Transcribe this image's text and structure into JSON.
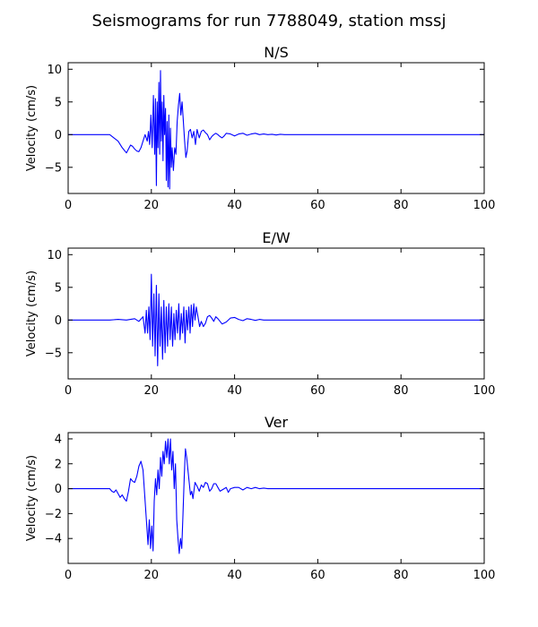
{
  "figure": {
    "title": "Seismograms for run 7788049, station mssj"
  },
  "chart_data": [
    {
      "type": "line",
      "title": "N/S",
      "xlabel": "",
      "ylabel": "Velocity (cm/s)",
      "xlim": [
        0,
        100
      ],
      "ylim": [
        -9,
        11
      ],
      "xticks": [
        0,
        20,
        40,
        60,
        80,
        100
      ],
      "yticks": [
        -5,
        0,
        5,
        10
      ],
      "grid": false,
      "series": [
        {
          "color": "#0000ff",
          "x": [
            0,
            10,
            11,
            12,
            13,
            14,
            14.5,
            15,
            15.5,
            16,
            16.5,
            17,
            17.5,
            18,
            18.5,
            19,
            19.3,
            19.6,
            19.9,
            20.2,
            20.5,
            20.8,
            21.0,
            21.2,
            21.4,
            21.6,
            21.8,
            22.0,
            22.2,
            22.4,
            22.6,
            22.8,
            23.0,
            23.2,
            23.4,
            23.6,
            23.8,
            24.0,
            24.2,
            24.4,
            24.6,
            24.8,
            25.0,
            25.3,
            25.6,
            25.9,
            26.2,
            26.5,
            26.8,
            27.1,
            27.4,
            27.7,
            28.0,
            28.3,
            28.6,
            29.0,
            29.4,
            29.8,
            30.2,
            30.6,
            31,
            31.5,
            32,
            32.5,
            33,
            33.5,
            34,
            34.5,
            35,
            35.5,
            36,
            36.5,
            37,
            37.5,
            38,
            39,
            40,
            41,
            42,
            43,
            44,
            45,
            46,
            47,
            48,
            49,
            50,
            51,
            52,
            53,
            55,
            60,
            100
          ],
          "y": [
            0,
            0,
            -0.5,
            -1,
            -2,
            -2.8,
            -2.2,
            -1.6,
            -1.8,
            -2.2,
            -2.5,
            -2.6,
            -2,
            -1,
            0,
            -1,
            0.5,
            -1.5,
            3,
            -2,
            6,
            -3,
            5.5,
            -7.8,
            5,
            -2,
            8,
            -3,
            9.8,
            -1,
            5,
            -4,
            6,
            0,
            4,
            -7,
            2,
            -8,
            3,
            -8.3,
            1,
            -5,
            -2,
            -5.5,
            -2,
            -3,
            2,
            4.5,
            6.3,
            3,
            5,
            2,
            -1,
            -3.5,
            -2.5,
            0.5,
            0.8,
            -0.5,
            0.5,
            -1.5,
            0.8,
            -0.5,
            0.5,
            0.7,
            0.3,
            0,
            -0.8,
            -0.3,
            0,
            0.2,
            0,
            -0.3,
            -0.5,
            -0.2,
            0.2,
            0.1,
            -0.2,
            0.1,
            0.2,
            -0.1,
            0.1,
            0.2,
            0,
            0.1,
            0,
            0.05,
            -0.05,
            0.05,
            0,
            0,
            0,
            0,
            0
          ]
        }
      ]
    },
    {
      "type": "line",
      "title": "E/W",
      "xlabel": "",
      "ylabel": "Velocity (cm/s)",
      "xlim": [
        0,
        100
      ],
      "ylim": [
        -9,
        11
      ],
      "xticks": [
        0,
        20,
        40,
        60,
        80,
        100
      ],
      "yticks": [
        -5,
        0,
        5,
        10
      ],
      "grid": false,
      "series": [
        {
          "color": "#0000ff",
          "x": [
            0,
            10,
            12,
            14,
            16,
            17,
            18,
            18.5,
            18.8,
            19.1,
            19.4,
            19.7,
            20.0,
            20.3,
            20.6,
            20.9,
            21.2,
            21.5,
            21.8,
            22.1,
            22.4,
            22.7,
            23.0,
            23.3,
            23.6,
            23.9,
            24.2,
            24.5,
            24.8,
            25.1,
            25.4,
            25.7,
            26.0,
            26.3,
            26.6,
            26.9,
            27.2,
            27.5,
            27.8,
            28.1,
            28.4,
            28.7,
            29.0,
            29.3,
            29.6,
            29.9,
            30.2,
            30.5,
            30.8,
            31.2,
            31.6,
            32,
            32.5,
            33,
            33.5,
            34,
            34.5,
            35,
            35.5,
            36,
            37,
            38,
            39,
            40,
            41,
            42,
            43,
            44,
            45,
            46,
            47,
            48,
            49,
            50,
            52,
            55,
            60,
            100
          ],
          "y": [
            0,
            0,
            0.1,
            0,
            0.2,
            -0.2,
            0.5,
            -2,
            1.5,
            -2,
            2,
            -3,
            7,
            -4,
            4,
            -5.5,
            5.3,
            -7,
            4,
            -4,
            2,
            -6,
            3,
            -5,
            2,
            -4,
            2.5,
            -3,
            2,
            -4,
            1,
            -3,
            1.5,
            -2,
            2.5,
            -3,
            1,
            -2,
            2,
            -3.5,
            1.5,
            -1.5,
            2,
            -2,
            2.3,
            -1,
            2.5,
            0,
            2,
            0.5,
            -1,
            -0.2,
            -1,
            -0.5,
            0.5,
            0.7,
            0.3,
            -0.2,
            0.5,
            0.2,
            -0.6,
            -0.3,
            0.3,
            0.4,
            0.1,
            -0.1,
            0.2,
            0.1,
            -0.05,
            0.1,
            0,
            0,
            0,
            0,
            0,
            0,
            0,
            0
          ]
        }
      ]
    },
    {
      "type": "line",
      "title": "Ver",
      "xlabel": "",
      "ylabel": "Velocity (cm/s)",
      "xlim": [
        0,
        100
      ],
      "ylim": [
        -6,
        4.5
      ],
      "xticks": [
        0,
        20,
        40,
        60,
        80,
        100
      ],
      "yticks": [
        -4,
        -2,
        0,
        2,
        4
      ],
      "grid": false,
      "series": [
        {
          "color": "#0000ff",
          "x": [
            0,
            10,
            10.5,
            11,
            11.5,
            12,
            12.5,
            13,
            13.5,
            14,
            14.5,
            15,
            15.5,
            16,
            16.5,
            17,
            17.5,
            18,
            18.3,
            18.6,
            18.9,
            19.2,
            19.5,
            19.8,
            20.1,
            20.4,
            20.7,
            21.0,
            21.3,
            21.6,
            21.9,
            22.2,
            22.5,
            22.8,
            23.1,
            23.4,
            23.7,
            24.0,
            24.3,
            24.6,
            24.9,
            25.2,
            25.5,
            25.8,
            26.1,
            26.4,
            26.7,
            27.0,
            27.3,
            27.6,
            27.9,
            28.2,
            28.5,
            28.8,
            29.1,
            29.4,
            29.7,
            30.0,
            30.5,
            31,
            31.5,
            32,
            32.5,
            33,
            33.5,
            34,
            34.5,
            35,
            35.5,
            36,
            36.5,
            37,
            37.5,
            38,
            38.5,
            39,
            40,
            41,
            42,
            43,
            44,
            45,
            46,
            47,
            48,
            50,
            55,
            60,
            100
          ],
          "y": [
            0,
            0,
            -0.2,
            -0.3,
            -0.1,
            -0.4,
            -0.7,
            -0.5,
            -0.8,
            -1.0,
            -0.2,
            0.8,
            0.6,
            0.5,
            1.0,
            1.8,
            2.2,
            1.5,
            0,
            -1.5,
            -3.0,
            -4.5,
            -2.5,
            -4.8,
            -3.0,
            -5.0,
            -1.0,
            0.8,
            -0.5,
            1.5,
            0,
            2.5,
            1.0,
            3.0,
            2.0,
            3.8,
            2.5,
            4.0,
            2.0,
            4.0,
            1.5,
            3.0,
            0,
            2.0,
            -2.5,
            -4.0,
            -5.2,
            -4.0,
            -4.8,
            -2.0,
            1.0,
            3.2,
            2.5,
            1.5,
            0.5,
            -0.5,
            -0.2,
            -0.8,
            0.5,
            0.2,
            -0.2,
            0.3,
            0.1,
            0.5,
            0.4,
            -0.2,
            0,
            0.4,
            0.4,
            0.1,
            -0.2,
            -0.1,
            0,
            0.1,
            -0.3,
            0,
            0.1,
            0.1,
            -0.1,
            0.1,
            0,
            0.1,
            0,
            0.05,
            0,
            0,
            0,
            0,
            0
          ]
        }
      ]
    }
  ]
}
